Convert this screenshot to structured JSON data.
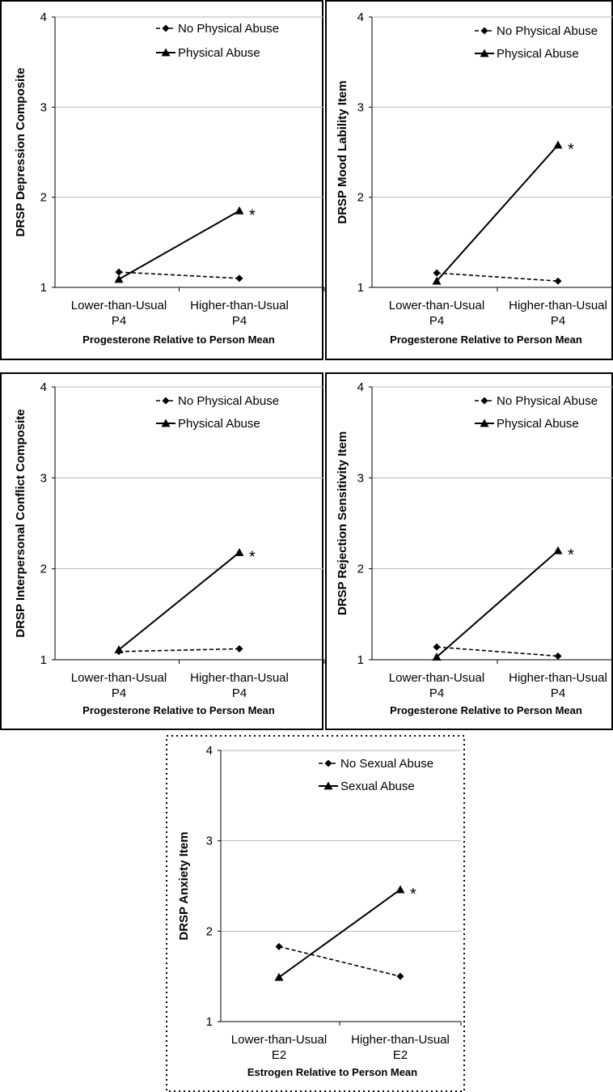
{
  "charts": [
    {
      "chart_data": {
        "type": "line",
        "categories": [
          "Lower-than-Usual|P4",
          "Higher-than-Usual|P4"
        ],
        "ylabel": "DRSP Depression Composite",
        "xlabel": "Progesterone Relative to Person Mean",
        "ylim": [
          1,
          4
        ],
        "yticks": [
          "1",
          "2",
          "3",
          "4"
        ],
        "grid": "horizontal",
        "legend_position": "top-right",
        "series": [
          {
            "name": "No Physical Abuse",
            "marker": "diamond",
            "style": "dashed",
            "values": [
              1.17,
              1.1
            ]
          },
          {
            "name": "Physical Abuse",
            "marker": "triangle",
            "style": "solid",
            "values": [
              1.09,
              1.85
            ]
          }
        ],
        "annotation": "*"
      }
    },
    {
      "chart_data": {
        "type": "line",
        "categories": [
          "Lower-than-Usual|P4",
          "Higher-than-Usual|P4"
        ],
        "ylabel": "DRSP Mood Lability Item",
        "xlabel": "Progesterone Relative to Person Mean",
        "ylim": [
          1,
          4
        ],
        "yticks": [
          "1",
          "2",
          "3",
          "4"
        ],
        "grid": "horizontal",
        "legend_position": "top-right",
        "series": [
          {
            "name": "No Physical Abuse",
            "marker": "diamond",
            "style": "dashed",
            "values": [
              1.16,
              1.07
            ]
          },
          {
            "name": "Physical Abuse",
            "marker": "triangle",
            "style": "solid",
            "values": [
              1.07,
              2.58
            ]
          }
        ],
        "annotation": "*"
      }
    },
    {
      "chart_data": {
        "type": "line",
        "categories": [
          "Lower-than-Usual|P4",
          "Higher-than-Usual|P4"
        ],
        "ylabel": "DRSP Interpersonal Conflict Composite",
        "xlabel": "Progesterone Relative to Person Mean",
        "ylim": [
          1,
          4
        ],
        "yticks": [
          "1",
          "2",
          "3",
          "4"
        ],
        "grid": "horizontal",
        "legend_position": "top-right",
        "series": [
          {
            "name": "No Physical Abuse",
            "marker": "diamond",
            "style": "dashed",
            "values": [
              1.09,
              1.12
            ]
          },
          {
            "name": "Physical Abuse",
            "marker": "triangle",
            "style": "solid",
            "values": [
              1.11,
              2.18
            ]
          }
        ],
        "annotation": "*"
      }
    },
    {
      "chart_data": {
        "type": "line",
        "categories": [
          "Lower-than-Usual|P4",
          "Higher-than-Usual|P4"
        ],
        "ylabel": "DRSP Rejection Sensitivity Item",
        "xlabel": "Progesterone Relative to Person Mean",
        "ylim": [
          1,
          4
        ],
        "yticks": [
          "1",
          "2",
          "3",
          "4"
        ],
        "grid": "horizontal",
        "legend_position": "top-right",
        "series": [
          {
            "name": "No Physical Abuse",
            "marker": "diamond",
            "style": "dashed",
            "values": [
              1.14,
              1.04
            ]
          },
          {
            "name": "Physical Abuse",
            "marker": "triangle",
            "style": "solid",
            "values": [
              1.03,
              2.2
            ]
          }
        ],
        "annotation": "*"
      }
    },
    {
      "chart_data": {
        "type": "line",
        "categories": [
          "Lower-than-Usual|E2",
          "Higher-than-Usual|E2"
        ],
        "ylabel": "DRSP Anxiety Item",
        "xlabel": "Estrogen Relative to Person Mean",
        "ylim": [
          1,
          4
        ],
        "yticks": [
          "1",
          "2",
          "3",
          "4"
        ],
        "grid": "horizontal",
        "legend_position": "top-right",
        "series": [
          {
            "name": "No Sexual Abuse",
            "marker": "diamond",
            "style": "dashed",
            "values": [
              1.83,
              1.5
            ]
          },
          {
            "name": "Sexual Abuse",
            "marker": "triangle",
            "style": "solid",
            "values": [
              1.49,
              2.46
            ]
          }
        ],
        "annotation": "*"
      }
    }
  ]
}
